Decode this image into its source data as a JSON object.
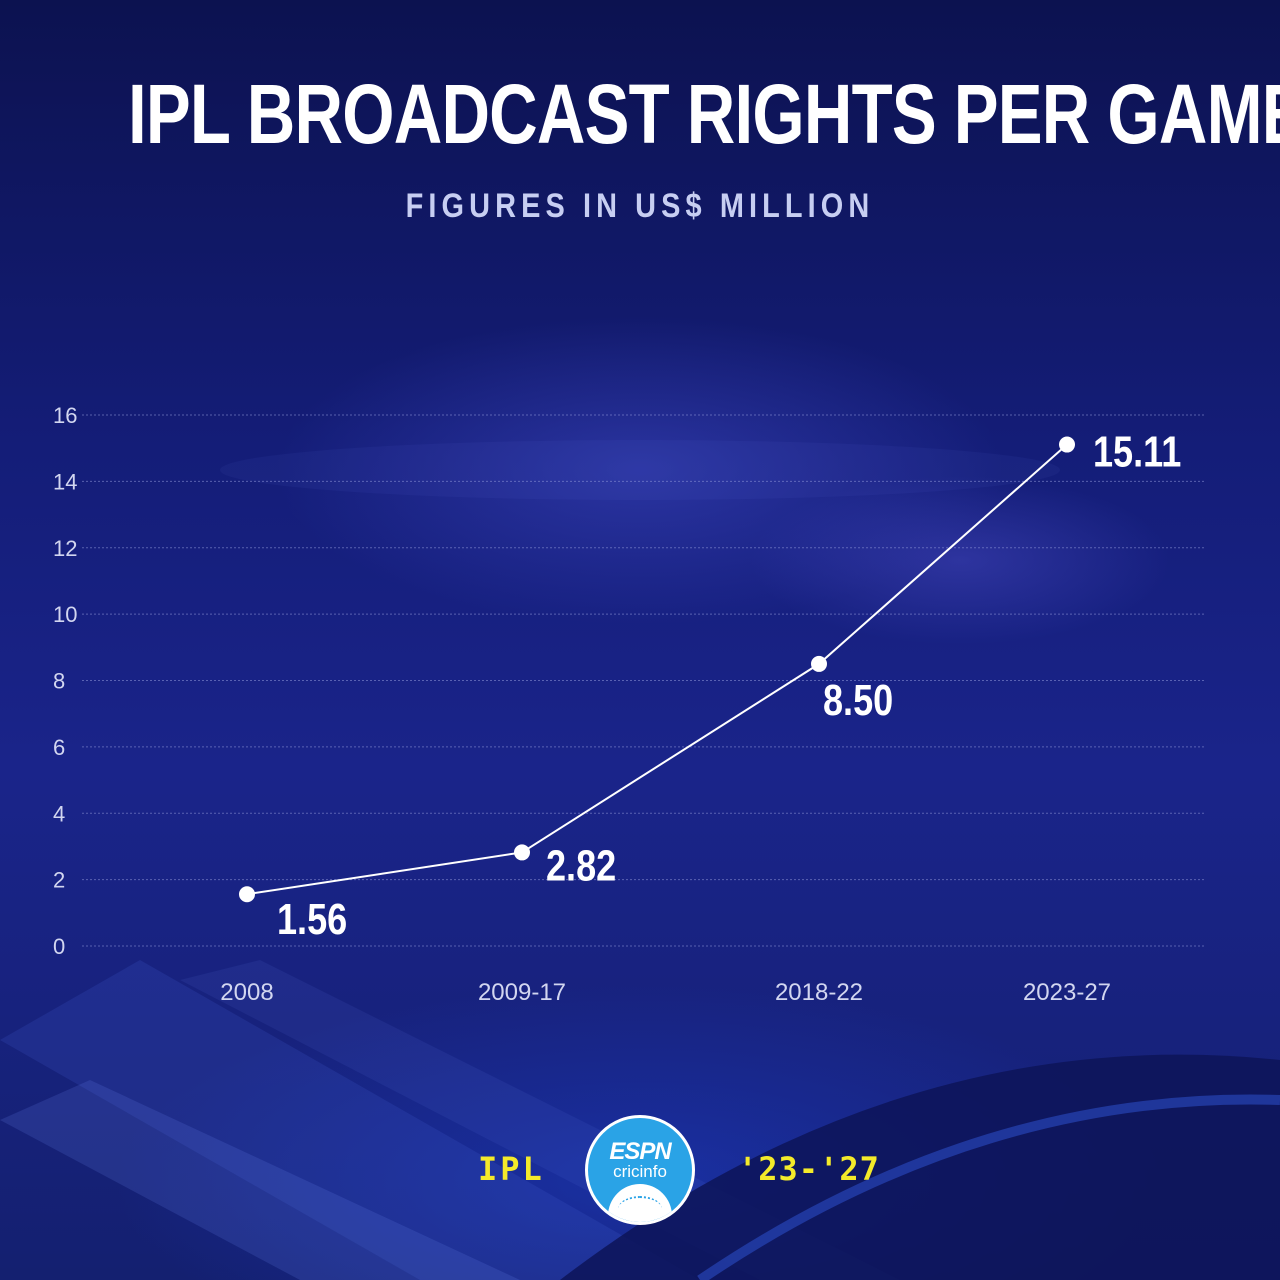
{
  "title": "IPL BROADCAST RIGHTS PER GAME",
  "subtitle": "FIGURES IN US$ MILLION",
  "chart_data": {
    "type": "line",
    "categories": [
      "2008",
      "2009-17",
      "2018-22",
      "2023-27"
    ],
    "values": [
      1.56,
      2.82,
      8.5,
      15.11
    ],
    "data_labels": [
      "1.56",
      "2.82",
      "8.50",
      "15.11"
    ],
    "ylim": [
      0,
      16
    ],
    "yticks": [
      "0",
      "2",
      "4",
      "6",
      "8",
      "10",
      "12",
      "14",
      "16"
    ],
    "xlabel": "",
    "ylabel": "",
    "grid": "dotted horizontal",
    "colors": {
      "line": "#ffffff",
      "marker": "#ffffff",
      "label": "#ffffff"
    }
  },
  "footer": {
    "left": "IPL",
    "right": "'23-'27",
    "logo": {
      "top": "ESPN",
      "bottom": "cricinfo",
      "icon": "cricket-ball-icon"
    },
    "accent": "#f4ea2a",
    "logo_color": "#2aa3e6"
  }
}
